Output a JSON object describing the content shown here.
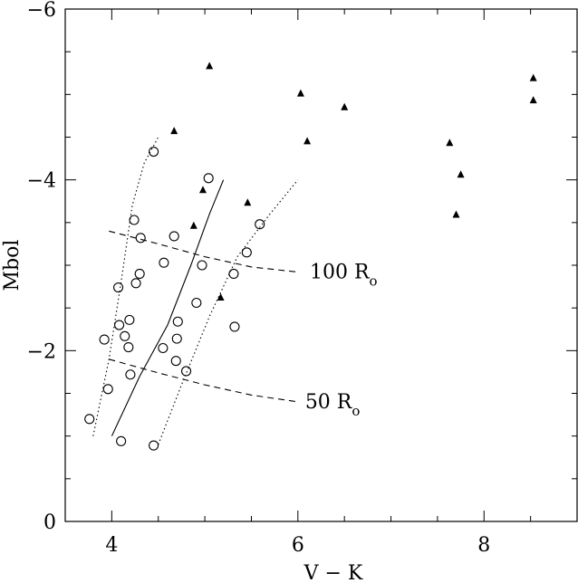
{
  "chart_data": {
    "type": "scatter",
    "xlabel": "V − K",
    "ylabel": "Mbol",
    "xlim": [
      3.5,
      9.0
    ],
    "ylim": [
      0,
      -6
    ],
    "y_inverted": true,
    "x_ticks": [
      4,
      6,
      8
    ],
    "y_ticks": [
      0,
      -2,
      -4,
      -6
    ],
    "y_tick_labels": [
      "0",
      "−2",
      "−4",
      "−6"
    ],
    "x_minor_step": 0.5,
    "y_minor_step": 0.5,
    "grid": false,
    "series": [
      {
        "marker": "open-circle",
        "points": [
          [
            3.76,
            -1.2
          ],
          [
            3.92,
            -2.13
          ],
          [
            3.96,
            -1.55
          ],
          [
            4.07,
            -2.74
          ],
          [
            4.08,
            -2.3
          ],
          [
            4.14,
            -2.17
          ],
          [
            4.18,
            -2.04
          ],
          [
            4.19,
            -2.36
          ],
          [
            4.2,
            -1.72
          ],
          [
            4.24,
            -3.53
          ],
          [
            4.26,
            -2.79
          ],
          [
            4.3,
            -2.9
          ],
          [
            4.31,
            -3.32
          ],
          [
            4.45,
            -4.33
          ],
          [
            4.55,
            -2.03
          ],
          [
            4.56,
            -3.03
          ],
          [
            4.67,
            -3.34
          ],
          [
            4.69,
            -1.88
          ],
          [
            4.7,
            -2.14
          ],
          [
            4.71,
            -2.34
          ],
          [
            4.8,
            -1.76
          ],
          [
            4.91,
            -2.56
          ],
          [
            4.97,
            -3.0
          ],
          [
            5.04,
            -4.02
          ],
          [
            5.31,
            -2.9
          ],
          [
            5.32,
            -2.28
          ],
          [
            5.45,
            -3.15
          ],
          [
            5.59,
            -3.48
          ],
          [
            4.1,
            -0.94
          ],
          [
            4.45,
            -0.89
          ]
        ]
      },
      {
        "marker": "filled-triangle",
        "points": [
          [
            5.05,
            -5.33
          ],
          [
            4.67,
            -4.57
          ],
          [
            6.03,
            -5.01
          ],
          [
            6.1,
            -4.45
          ],
          [
            6.5,
            -4.85
          ],
          [
            4.98,
            -3.88
          ],
          [
            5.46,
            -3.73
          ],
          [
            4.88,
            -3.46
          ],
          [
            5.17,
            -2.62
          ],
          [
            7.63,
            -4.43
          ],
          [
            7.75,
            -4.06
          ],
          [
            7.7,
            -3.59
          ],
          [
            8.53,
            -5.19
          ],
          [
            8.53,
            -4.93
          ]
        ]
      }
    ],
    "lines": [
      {
        "style": "solid",
        "points": [
          [
            4.0,
            -1.0
          ],
          [
            4.3,
            -1.7
          ],
          [
            4.6,
            -2.3
          ],
          [
            4.85,
            -3.0
          ],
          [
            5.05,
            -3.6
          ],
          [
            5.2,
            -4.0
          ]
        ]
      },
      {
        "style": "dotted",
        "points": [
          [
            3.8,
            -1.0
          ],
          [
            3.97,
            -1.9
          ],
          [
            4.1,
            -2.8
          ],
          [
            4.22,
            -3.7
          ],
          [
            4.35,
            -4.2
          ],
          [
            4.5,
            -4.5
          ]
        ]
      },
      {
        "style": "dotted",
        "points": [
          [
            4.5,
            -0.9
          ],
          [
            4.75,
            -1.6
          ],
          [
            5.05,
            -2.4
          ],
          [
            5.35,
            -3.1
          ],
          [
            5.7,
            -3.6
          ],
          [
            6.0,
            -4.0
          ]
        ]
      },
      {
        "style": "dashed",
        "points": [
          [
            3.97,
            -3.4
          ],
          [
            4.5,
            -3.25
          ],
          [
            5.0,
            -3.1
          ],
          [
            5.5,
            -2.98
          ],
          [
            6.0,
            -2.92
          ]
        ]
      },
      {
        "style": "dashed",
        "points": [
          [
            3.97,
            -1.9
          ],
          [
            4.5,
            -1.74
          ],
          [
            5.0,
            -1.6
          ],
          [
            5.5,
            -1.48
          ],
          [
            6.0,
            -1.4
          ]
        ]
      }
    ],
    "annotations": [
      {
        "text": "100 R",
        "subscript": "o",
        "x": 6.05,
        "y": -2.92
      },
      {
        "text": "50 R",
        "subscript": "o",
        "x": 6.0,
        "y": -1.4
      }
    ]
  }
}
